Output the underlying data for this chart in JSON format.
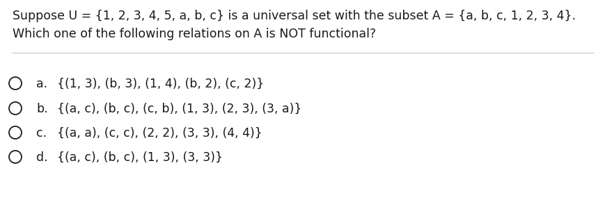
{
  "bg_color": "#ffffff",
  "text_color": "#1a1a1a",
  "title_line1": "Suppose U = {1, 2, 3, 4, 5, a, b, c} is a universal set with the subset A = {a, b, c, 1, 2, 3, 4}.",
  "title_line2": "Which one of the following relations on A is NOT functional?",
  "option_labels": [
    "a.",
    "b.",
    "c.",
    "d."
  ],
  "option_texts": [
    "{(1, 3), (b, 3), (1, 4), (b, 2), (c, 2)}",
    "{(a, c), (b, c), (c, b), (1, 3), (2, 3), (3, a)}",
    "{(a, a), (c, c), (2, 2), (3, 3), (4, 4)}",
    "{(a, c), (b, c), (1, 3), (3, 3)}"
  ],
  "font_size": 12.5,
  "bg_color_fig": "#f0f0f0"
}
